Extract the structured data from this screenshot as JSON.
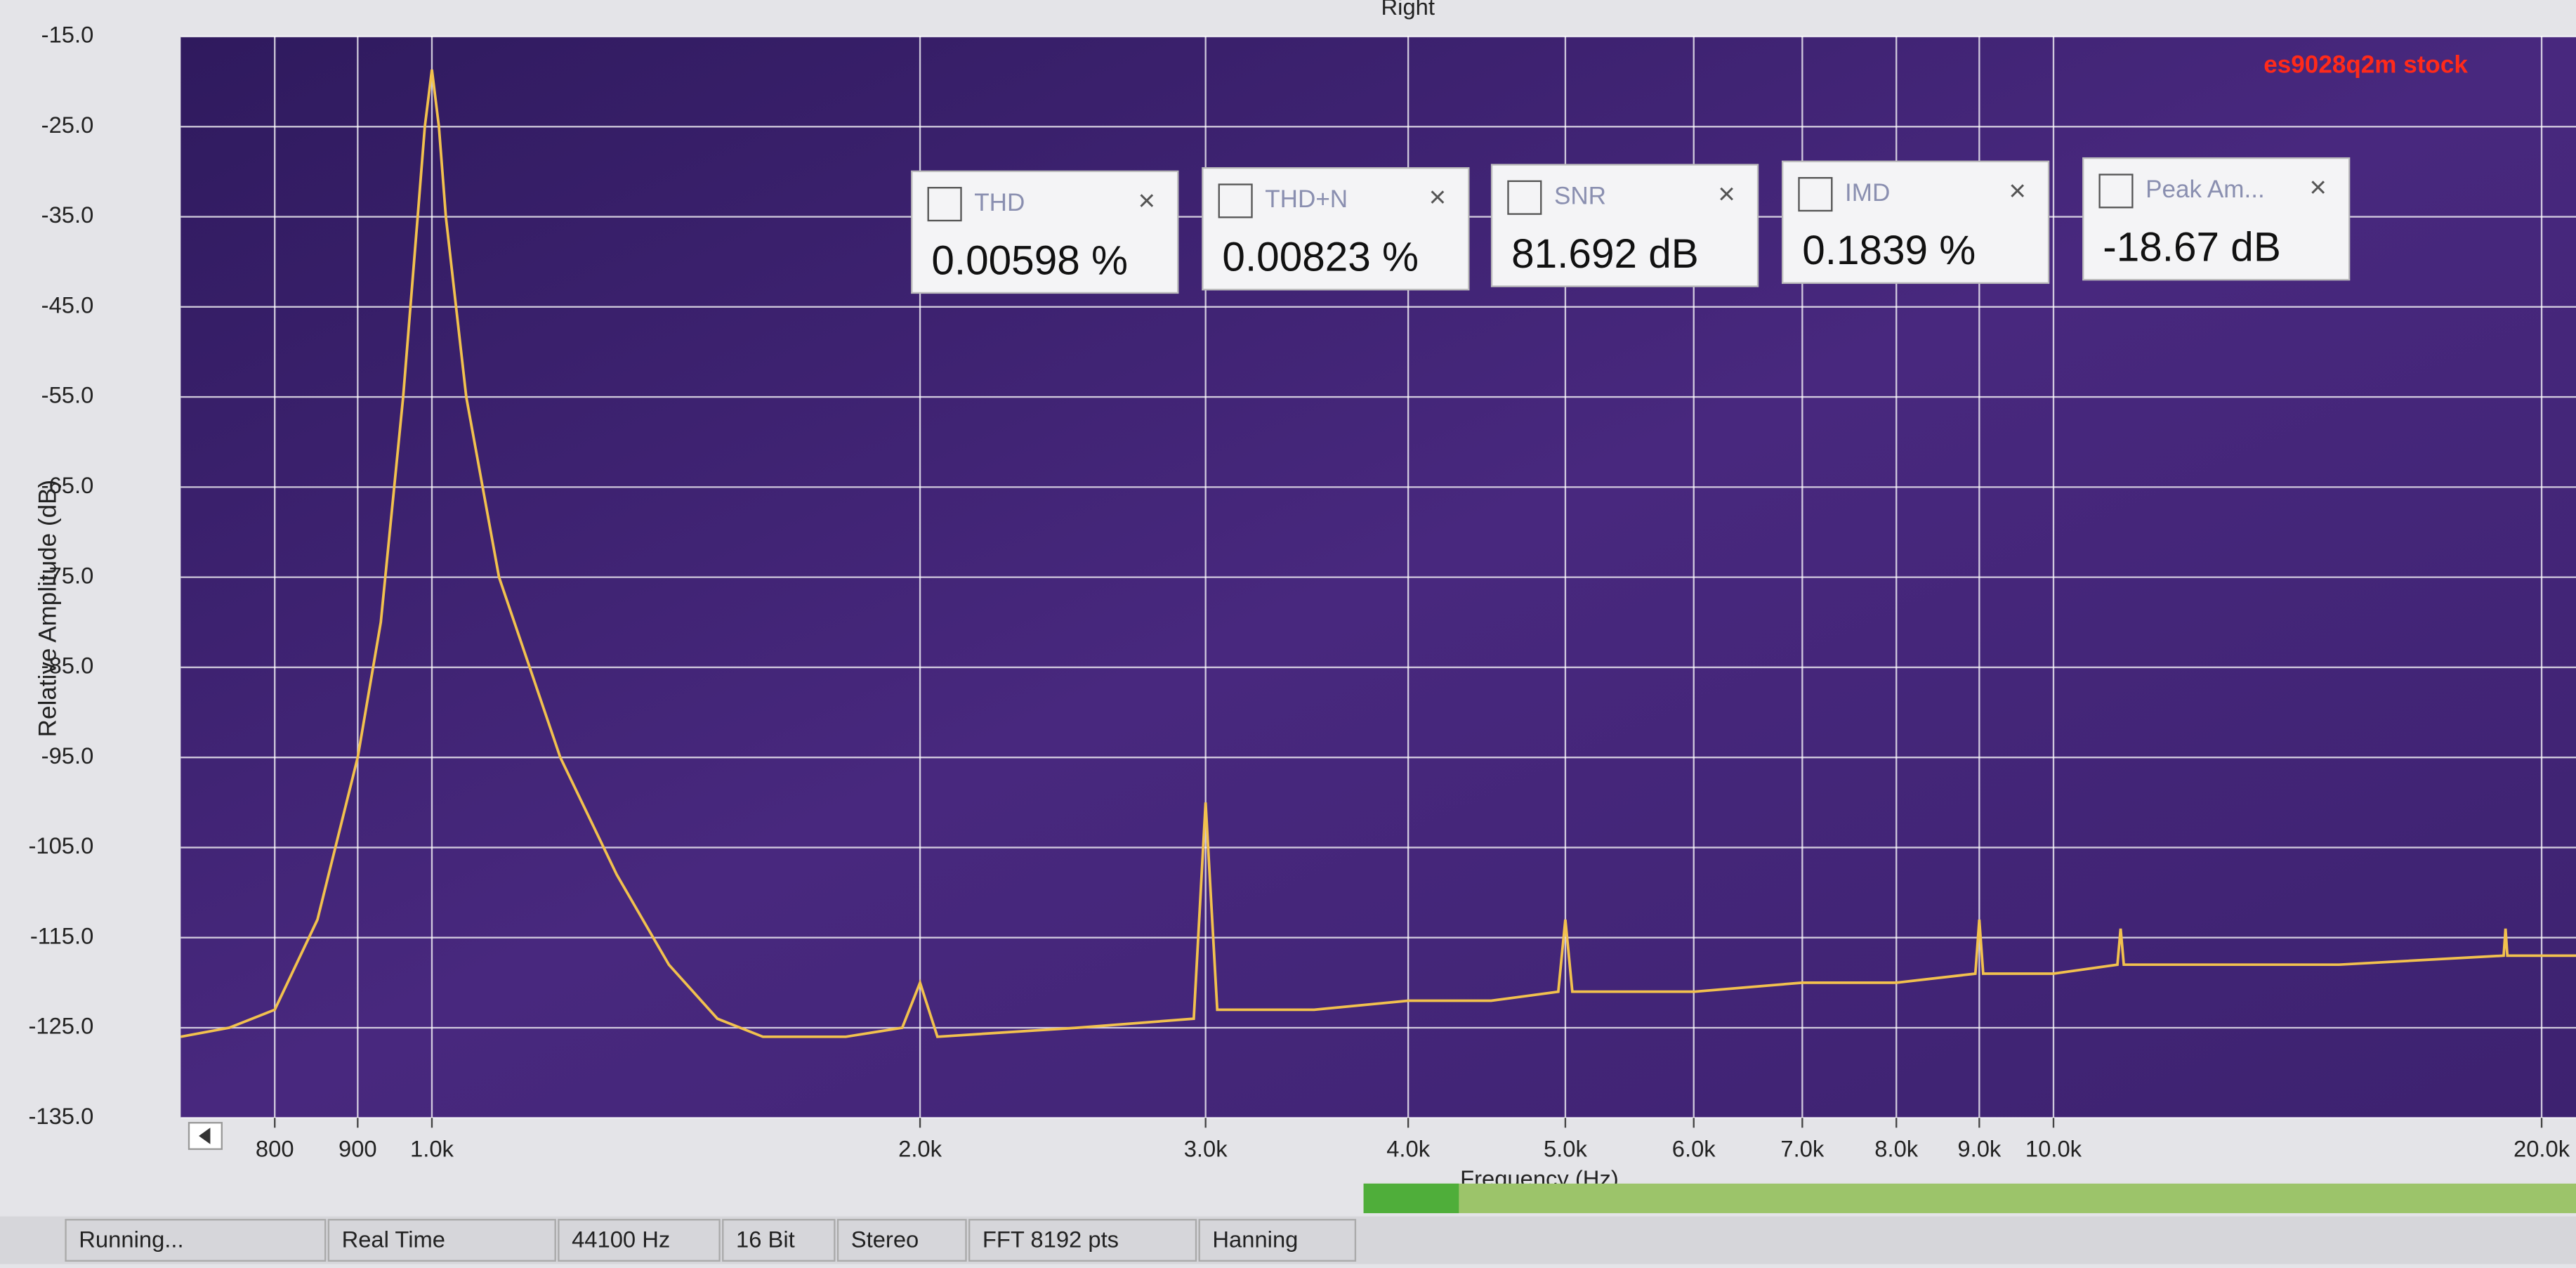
{
  "chart_data": {
    "type": "line",
    "title": "Right",
    "annotation": "es9028q2m stock",
    "x_label": "Frequency (Hz)",
    "y_label": "Relative Amplitude (dB)",
    "log_x": true,
    "grid": true,
    "color": "#f2c14e",
    "xlim": [
      700,
      21000
    ],
    "xticks": [
      800,
      900,
      {
        "value": 1000,
        "label": "1.0k"
      },
      {
        "value": 2000,
        "label": "2.0k"
      },
      {
        "value": 3000,
        "label": "3.0k"
      },
      {
        "value": 4000,
        "label": "4.0k"
      },
      {
        "value": 5000,
        "label": "5.0k"
      },
      {
        "value": 6000,
        "label": "6.0k"
      },
      {
        "value": 7000,
        "label": "7.0k"
      },
      {
        "value": 8000,
        "label": "8.0k"
      },
      {
        "value": 9000,
        "label": "9.0k"
      },
      {
        "value": 10000,
        "label": "10.0k"
      },
      {
        "value": 20000,
        "label": "20.0k"
      }
    ],
    "ylim": [
      -135,
      -15
    ],
    "yticks": [
      {
        "value": -15,
        "label": "-15.0"
      },
      {
        "value": -25,
        "label": "-25.0"
      },
      {
        "value": -35,
        "label": "-35.0"
      },
      {
        "value": -45,
        "label": "-45.0"
      },
      {
        "value": -55,
        "label": "-55.0"
      },
      {
        "value": -65,
        "label": "-65.0"
      },
      {
        "value": -75,
        "label": "-75.0"
      },
      {
        "value": -85,
        "label": "-85.0"
      },
      {
        "value": -95,
        "label": "-95.0"
      },
      {
        "value": -105,
        "label": "-105.0"
      },
      {
        "value": -115,
        "label": "-115.0"
      },
      {
        "value": -125,
        "label": "-125.0"
      },
      {
        "value": -135,
        "label": "-135.0"
      }
    ],
    "x": [
      700,
      750,
      800,
      850,
      900,
      930,
      960,
      980,
      990,
      1000,
      1010,
      1020,
      1050,
      1100,
      1200,
      1300,
      1400,
      1500,
      1600,
      1800,
      1950,
      2000,
      2050,
      2500,
      2950,
      3000,
      3050,
      3500,
      4000,
      4500,
      4950,
      5000,
      5050,
      6000,
      7000,
      8000,
      8950,
      9000,
      9050,
      10000,
      10950,
      11000,
      11050,
      15000,
      18950,
      19000,
      19050,
      21000
    ],
    "y": [
      -126,
      -125,
      -123,
      -113,
      -95,
      -80,
      -55,
      -35,
      -25,
      -18.67,
      -25,
      -35,
      -55,
      -75,
      -95,
      -108,
      -118,
      -124,
      -126,
      -126,
      -125,
      -120,
      -126,
      -125,
      -124,
      -100,
      -123,
      -123,
      -122,
      -122,
      -121,
      -113,
      -121,
      -121,
      -120,
      -120,
      -119,
      -113,
      -119,
      -119,
      -118,
      -114,
      -118,
      -118,
      -117,
      -114,
      -117,
      -117
    ]
  },
  "meters": [
    {
      "label": "THD",
      "value": "0.00598 %"
    },
    {
      "label": "THD+N",
      "value": "0.00823 %"
    },
    {
      "label": "SNR",
      "value": "81.692 dB"
    },
    {
      "label": "IMD",
      "value": "0.1839 %"
    },
    {
      "label": "Peak Am...",
      "value": "-18.67 dB"
    }
  ],
  "status": [
    "Running...",
    "Real Time",
    "44100 Hz",
    "16 Bit",
    "Stereo",
    "FFT 8192 pts",
    "Hanning"
  ]
}
